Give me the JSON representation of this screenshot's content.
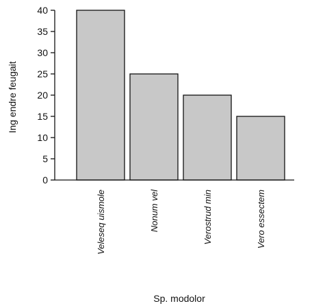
{
  "chart_data": {
    "type": "bar",
    "categories": [
      "Veleseq uismole",
      "Nonum vel",
      "Verostrud min",
      "Vero essectem"
    ],
    "values": [
      40,
      25,
      20,
      15
    ],
    "title": "",
    "xlabel": "Sp. modolor",
    "ylabel": "Ing endre feugait",
    "ylim": [
      0,
      40
    ],
    "yticks": [
      0,
      5,
      10,
      15,
      20,
      25,
      30,
      35,
      40
    ],
    "grid": false,
    "bar_color": "#c8c8c8",
    "bar_edge_color": "#111111"
  }
}
